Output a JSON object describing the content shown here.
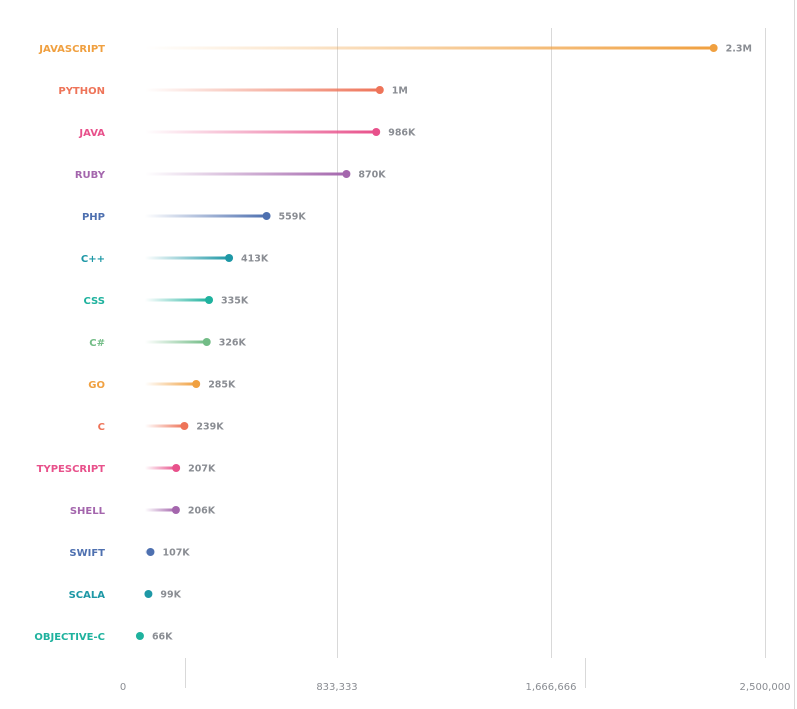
{
  "chart_data": {
    "type": "bar",
    "style": "lollipop",
    "orientation": "horizontal",
    "categories": [
      "JAVASCRIPT",
      "PYTHON",
      "JAVA",
      "RUBY",
      "PHP",
      "C++",
      "CSS",
      "C#",
      "GO",
      "C",
      "TYPESCRIPT",
      "SHELL",
      "SWIFT",
      "SCALA",
      "OBJECTIVE-C"
    ],
    "values": [
      2300000,
      1000000,
      986000,
      870000,
      559000,
      413000,
      335000,
      326000,
      285000,
      239000,
      207000,
      206000,
      107000,
      99000,
      66000
    ],
    "value_labels": [
      "2.3M",
      "1M",
      "986K",
      "870K",
      "559K",
      "413K",
      "335K",
      "326K",
      "285K",
      "239K",
      "207K",
      "206K",
      "107K",
      "99K",
      "66K"
    ],
    "colors": [
      "#f0a040",
      "#ee7459",
      "#e8518b",
      "#a466ad",
      "#4e70b0",
      "#1e98a6",
      "#1fb29e",
      "#72bc86",
      "#f0a040",
      "#ee7459",
      "#e8518b",
      "#a466ad",
      "#4e70b0",
      "#1e98a6",
      "#1fb29e"
    ],
    "xlim": [
      0,
      2500000
    ],
    "xticks": [
      0,
      833333,
      1666666,
      2500000
    ],
    "xtick_labels": [
      "0",
      "833,333",
      "1,666,666",
      "2,500,000"
    ],
    "grid": true,
    "legend": "none",
    "title": "",
    "xlabel": "",
    "ylabel": ""
  }
}
